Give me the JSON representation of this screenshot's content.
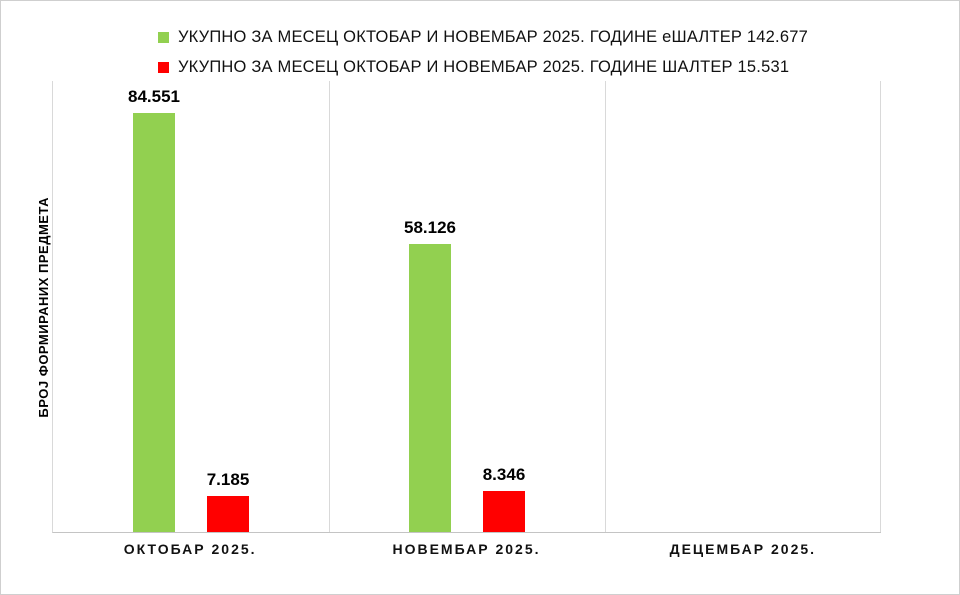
{
  "canvas": {
    "background": "#FFFFFF",
    "border_color": "#CFCFCF",
    "gridline_color": "#D9D9D9"
  },
  "chart_data": {
    "type": "bar",
    "title": "",
    "categories": [
      "ОКТОБАР 2025.",
      "НОВЕМБАР 2025.",
      "ДЕЦЕМБАР 2025."
    ],
    "series": [
      {
        "key": "eshalter",
        "name": "УКУПНО ЗА МЕСЕЦ ОКТОБАР И НОВЕМБАР 2025. ГОДИНЕ еШАЛТЕР 142.677",
        "total_shown_in_legend": "142.677",
        "color": "#92D050",
        "values": [
          84551,
          58126,
          null
        ],
        "value_labels": [
          "84.551",
          "58.126",
          null
        ]
      },
      {
        "key": "shalter",
        "name": "УКУПНО ЗА МЕСЕЦ ОКТОБАР И НОВЕМБАР 2025. ГОДИНЕ ШАЛТЕР 15.531",
        "total_shown_in_legend": "15.531",
        "color": "#FF0000",
        "values": [
          7185,
          8346,
          null
        ],
        "value_labels": [
          "7.185",
          "8.346",
          null
        ]
      }
    ],
    "xlabel": "",
    "ylabel": "БРОЈ ФОРМИРАНИХ ПРЕДМЕТА",
    "ylim": [
      0,
      91000
    ],
    "y_ticks_visible": false,
    "grid": "vertical-category-gridlines",
    "legend_position": "top",
    "data_labels": true
  }
}
